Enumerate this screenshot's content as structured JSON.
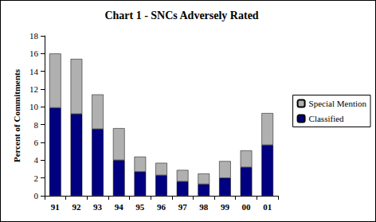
{
  "chart_data": {
    "type": "bar",
    "title": "Chart 1 - SNCs Adversely Rated",
    "y_label": "Percent of Commitments",
    "categories": [
      "91",
      "92",
      "93",
      "94",
      "95",
      "96",
      "97",
      "98",
      "99",
      "00",
      "01"
    ],
    "series": [
      {
        "name": "Classified",
        "color": "#000080",
        "values": [
          9.9,
          9.2,
          7.5,
          4.0,
          2.7,
          2.3,
          1.6,
          1.3,
          2.0,
          3.2,
          5.7
        ]
      },
      {
        "name": "Special Mention",
        "color": "#b0b0b0",
        "values": [
          6.1,
          6.2,
          3.9,
          3.6,
          1.7,
          1.4,
          1.3,
          1.2,
          1.9,
          1.9,
          3.6
        ]
      }
    ],
    "ylim": [
      0,
      18
    ],
    "yticks": [
      0,
      2,
      4,
      6,
      8,
      10,
      12,
      14,
      16,
      18
    ],
    "stacked": true,
    "grid": false,
    "legend": "right"
  }
}
